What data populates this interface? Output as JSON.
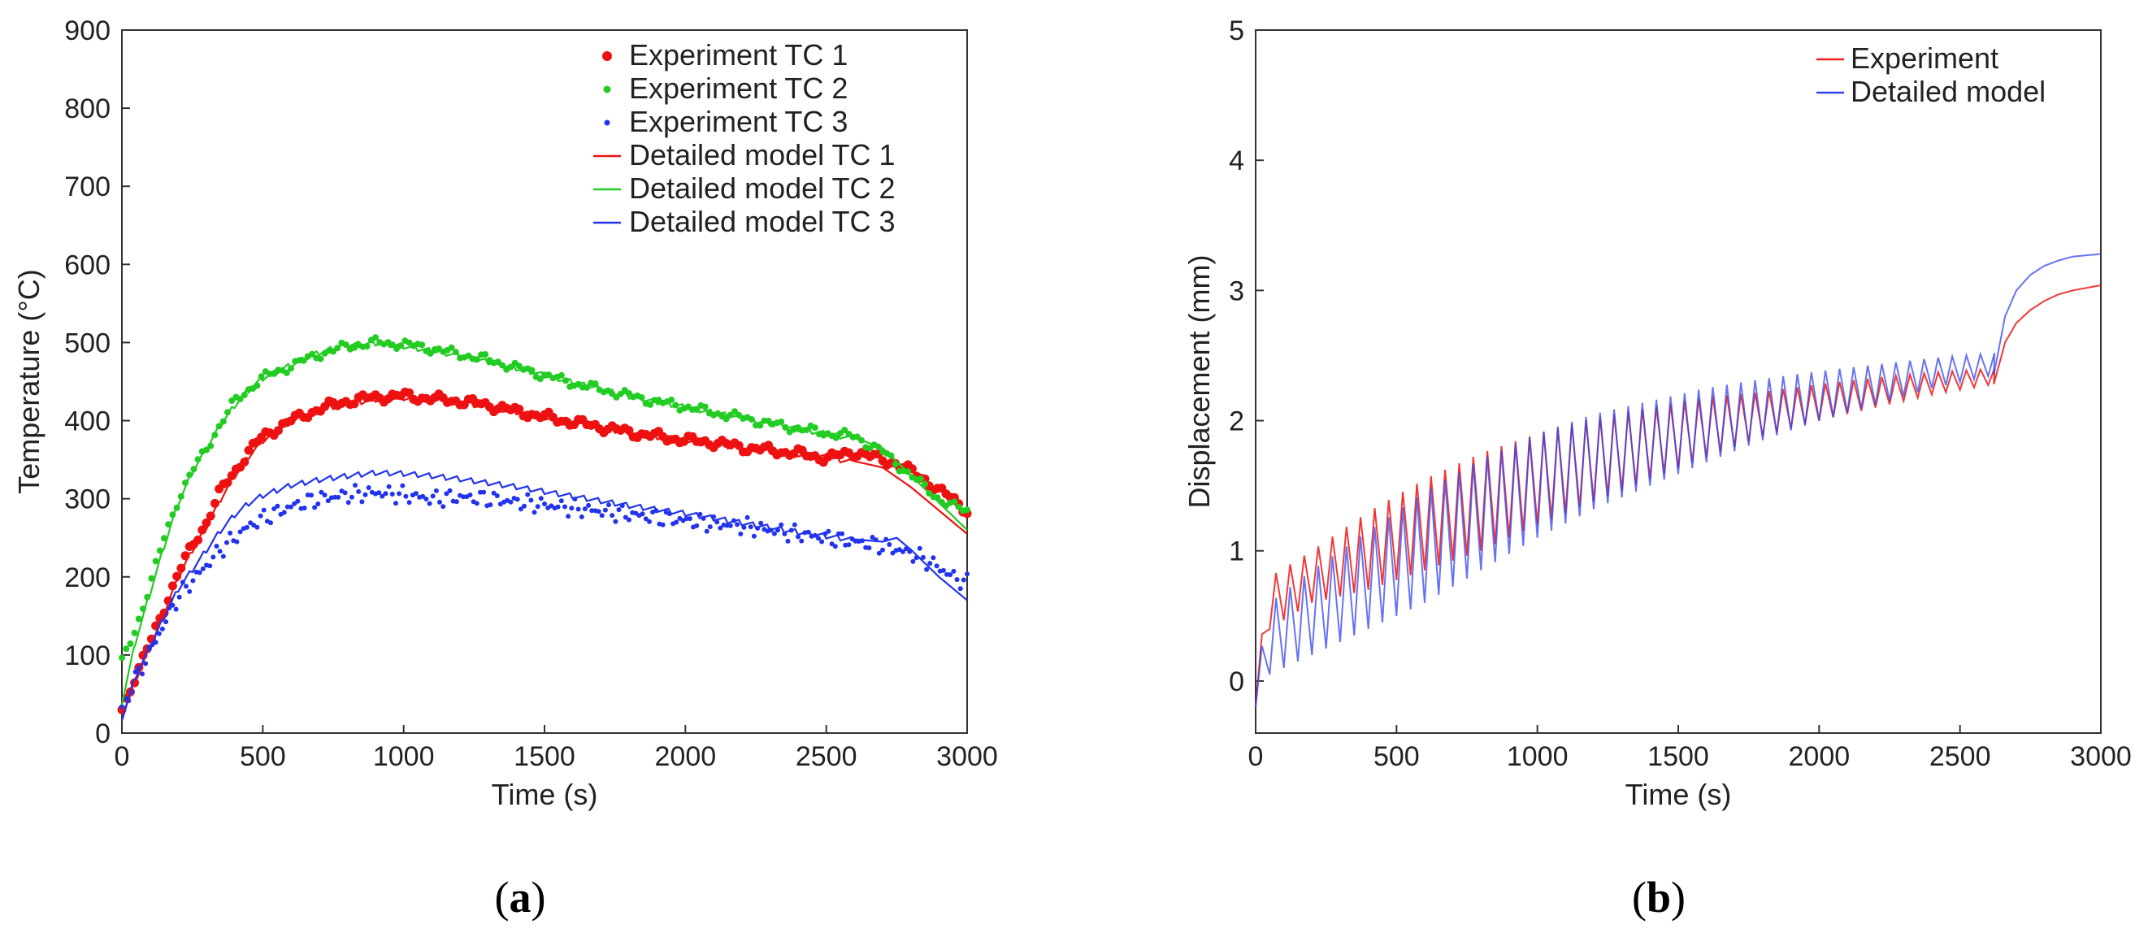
{
  "figure": {
    "panel_labels": [
      "a",
      "b"
    ]
  },
  "chart_data": [
    {
      "type": "line",
      "panel": "a",
      "title": "",
      "xlabel": "Time (s)",
      "ylabel": "Temperature (°C)",
      "xlim": [
        0,
        3000
      ],
      "ylim": [
        0,
        900
      ],
      "xticks": [
        0,
        500,
        1000,
        1500,
        2000,
        2500,
        3000
      ],
      "yticks": [
        0,
        100,
        200,
        300,
        400,
        500,
        600,
        700,
        800,
        900
      ],
      "grid": false,
      "legend_position": "top-right",
      "series": [
        {
          "name": "Experiment TC 1",
          "style": "dots-large",
          "color": "#ee1111",
          "x": [
            0,
            50,
            100,
            150,
            200,
            250,
            300,
            350,
            400,
            450,
            500,
            600,
            700,
            800,
            900,
            1000,
            1100,
            1200,
            1300,
            1400,
            1500,
            1600,
            1700,
            1800,
            1900,
            2000,
            2100,
            2200,
            2300,
            2400,
            2500,
            2600,
            2650,
            2700,
            2750,
            2800,
            2850,
            2900,
            2950,
            3000
          ],
          "y": [
            30,
            75,
            115,
            160,
            205,
            240,
            270,
            310,
            335,
            360,
            380,
            400,
            415,
            425,
            430,
            432,
            428,
            425,
            420,
            412,
            405,
            398,
            392,
            385,
            380,
            375,
            372,
            366,
            362,
            358,
            352,
            360,
            355,
            350,
            345,
            335,
            325,
            310,
            300,
            285
          ]
        },
        {
          "name": "Experiment TC 2",
          "style": "dots-medium",
          "color": "#22cc22",
          "x": [
            0,
            50,
            100,
            150,
            200,
            250,
            300,
            350,
            400,
            450,
            500,
            600,
            700,
            800,
            900,
            1000,
            1100,
            1200,
            1300,
            1400,
            1500,
            1600,
            1700,
            1800,
            1900,
            2000,
            2100,
            2200,
            2300,
            2400,
            2500,
            2600,
            2700,
            2750,
            2800,
            2850,
            2900,
            2950,
            3000
          ],
          "y": [
            90,
            135,
            190,
            250,
            300,
            335,
            365,
            395,
            425,
            440,
            455,
            470,
            485,
            495,
            500,
            498,
            492,
            485,
            478,
            468,
            458,
            448,
            440,
            432,
            424,
            418,
            410,
            404,
            396,
            390,
            384,
            380,
            360,
            345,
            330,
            315,
            300,
            290,
            285
          ]
        },
        {
          "name": "Experiment TC 3",
          "style": "dots-small",
          "color": "#2233ee",
          "x": [
            0,
            50,
            100,
            150,
            200,
            250,
            300,
            350,
            400,
            450,
            500,
            600,
            700,
            800,
            900,
            1000,
            1100,
            1200,
            1300,
            1400,
            1500,
            1600,
            1700,
            1800,
            1900,
            2000,
            2100,
            2200,
            2300,
            2400,
            2500,
            2600,
            2700,
            2750,
            2800,
            2850,
            2900,
            2950,
            3000
          ],
          "y": [
            30,
            70,
            105,
            140,
            175,
            195,
            215,
            235,
            250,
            265,
            275,
            290,
            300,
            305,
            308,
            305,
            300,
            302,
            300,
            296,
            292,
            288,
            284,
            280,
            276,
            272,
            268,
            265,
            260,
            255,
            250,
            245,
            240,
            235,
            230,
            222,
            212,
            200,
            192
          ]
        },
        {
          "name": "Detailed model TC 1",
          "style": "line",
          "color": "#ee1111",
          "x": [
            0,
            50,
            100,
            150,
            200,
            250,
            300,
            350,
            400,
            450,
            500,
            600,
            700,
            800,
            900,
            1000,
            1100,
            1200,
            1400,
            1600,
            1800,
            2000,
            2200,
            2400,
            2600,
            2700,
            2800,
            2900,
            3000
          ],
          "y": [
            20,
            70,
            110,
            155,
            200,
            235,
            265,
            300,
            330,
            355,
            375,
            400,
            415,
            422,
            428,
            430,
            428,
            424,
            412,
            398,
            385,
            375,
            366,
            358,
            348,
            340,
            315,
            285,
            255
          ]
        },
        {
          "name": "Detailed model TC 2",
          "style": "line",
          "color": "#22cc22",
          "x": [
            0,
            50,
            100,
            150,
            200,
            250,
            300,
            350,
            400,
            450,
            500,
            600,
            700,
            800,
            900,
            1000,
            1100,
            1200,
            1400,
            1600,
            1800,
            2000,
            2200,
            2400,
            2600,
            2700,
            2800,
            2900,
            3000
          ],
          "y": [
            40,
            120,
            180,
            240,
            295,
            335,
            365,
            395,
            420,
            440,
            455,
            472,
            488,
            498,
            500,
            496,
            490,
            484,
            468,
            450,
            432,
            418,
            404,
            390,
            378,
            365,
            330,
            295,
            260
          ]
        },
        {
          "name": "Detailed model TC 3",
          "style": "line",
          "color": "#2233ee",
          "x": [
            0,
            50,
            100,
            150,
            200,
            250,
            300,
            350,
            400,
            450,
            500,
            600,
            700,
            800,
            900,
            1000,
            1100,
            1200,
            1400,
            1600,
            1800,
            2000,
            2200,
            2400,
            2600,
            2700,
            2750,
            2800,
            2900,
            3000
          ],
          "y": [
            20,
            75,
            110,
            150,
            185,
            210,
            235,
            260,
            280,
            295,
            305,
            318,
            325,
            330,
            334,
            333,
            330,
            326,
            316,
            304,
            292,
            282,
            270,
            258,
            248,
            245,
            250,
            235,
            200,
            170
          ]
        }
      ]
    },
    {
      "type": "line",
      "panel": "b",
      "title": "",
      "xlabel": "Time (s)",
      "ylabel": "Displacement (mm)",
      "xlim": [
        0,
        3000
      ],
      "ylim": [
        -0.4,
        5
      ],
      "xticks": [
        0,
        500,
        1000,
        1500,
        2000,
        2500,
        3000
      ],
      "yticks": [
        0,
        1,
        2,
        3,
        4,
        5
      ],
      "grid": false,
      "legend_position": "top-right",
      "cycle_period_s": 50,
      "cycle_end_s": 2620,
      "series": [
        {
          "name": "Experiment",
          "style": "line",
          "color": "#ee2222",
          "envelope_x": [
            0,
            50,
            200,
            400,
            600,
            800,
            1000,
            1200,
            1400,
            1600,
            1800,
            2000,
            2200,
            2400,
            2620
          ],
          "peak": [
            0.0,
            0.8,
            1.0,
            1.3,
            1.55,
            1.75,
            1.9,
            2.02,
            2.1,
            2.18,
            2.22,
            2.28,
            2.33,
            2.37,
            2.4
          ],
          "trough": [
            -0.2,
            0.4,
            0.6,
            0.7,
            0.85,
            1.0,
            1.2,
            1.38,
            1.55,
            1.72,
            1.88,
            2.0,
            2.1,
            2.2,
            2.28
          ],
          "tail_x": [
            2620,
            2660,
            2700,
            2750,
            2800,
            2850,
            2900,
            2950,
            3000
          ],
          "tail_y": [
            2.28,
            2.6,
            2.75,
            2.85,
            2.92,
            2.97,
            3.0,
            3.02,
            3.04
          ]
        },
        {
          "name": "Detailed model",
          "style": "line",
          "color": "#3344ee",
          "envelope_x": [
            0,
            50,
            200,
            400,
            600,
            800,
            1000,
            1200,
            1400,
            1600,
            1800,
            2000,
            2200,
            2400,
            2620
          ],
          "peak": [
            0.0,
            0.6,
            0.85,
            1.15,
            1.45,
            1.7,
            1.9,
            2.05,
            2.15,
            2.25,
            2.32,
            2.38,
            2.43,
            2.48,
            2.52
          ],
          "trough": [
            -0.2,
            0.05,
            0.2,
            0.4,
            0.6,
            0.85,
            1.1,
            1.32,
            1.5,
            1.68,
            1.85,
            2.0,
            2.12,
            2.25,
            2.35
          ],
          "tail_x": [
            2620,
            2660,
            2700,
            2750,
            2800,
            2850,
            2900,
            2950,
            3000
          ],
          "tail_y": [
            2.35,
            2.8,
            3.0,
            3.12,
            3.19,
            3.23,
            3.26,
            3.27,
            3.28
          ]
        }
      ]
    }
  ]
}
